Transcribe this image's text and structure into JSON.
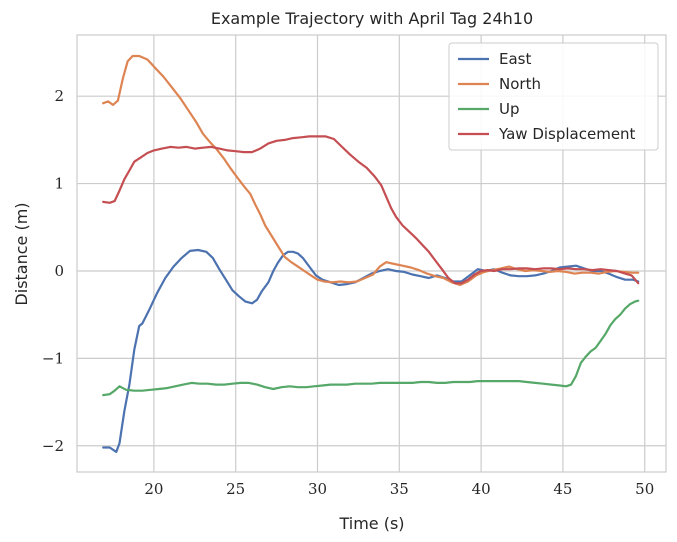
{
  "chart_data": {
    "type": "line",
    "title": "Example Trajectory with April Tag 24h10",
    "xlabel": "Time (s)",
    "ylabel": "Distance (m)",
    "xlim": [
      15.3,
      51.3
    ],
    "ylim": [
      -2.3,
      2.7
    ],
    "xticks": [
      20,
      25,
      30,
      35,
      40,
      45,
      50
    ],
    "yticks": [
      -2,
      -1,
      0,
      1,
      2
    ],
    "ytick_labels": [
      "−2",
      "−1",
      "0",
      "1",
      "2"
    ],
    "grid": true,
    "legend_position": "top-right",
    "series": [
      {
        "name": "East",
        "color": "#4c72b0",
        "points": [
          [
            16.9,
            -2.02
          ],
          [
            17.3,
            -2.02
          ],
          [
            17.7,
            -2.07
          ],
          [
            17.9,
            -1.97
          ],
          [
            18.2,
            -1.6
          ],
          [
            18.5,
            -1.3
          ],
          [
            18.8,
            -0.9
          ],
          [
            19.1,
            -0.63
          ],
          [
            19.3,
            -0.6
          ],
          [
            19.7,
            -0.45
          ],
          [
            20.2,
            -0.25
          ],
          [
            20.7,
            -0.08
          ],
          [
            21.2,
            0.05
          ],
          [
            21.7,
            0.15
          ],
          [
            22.2,
            0.23
          ],
          [
            22.7,
            0.24
          ],
          [
            23.2,
            0.22
          ],
          [
            23.6,
            0.15
          ],
          [
            24.0,
            0.02
          ],
          [
            24.4,
            -0.1
          ],
          [
            24.8,
            -0.22
          ],
          [
            25.2,
            -0.29
          ],
          [
            25.6,
            -0.35
          ],
          [
            26.0,
            -0.37
          ],
          [
            26.3,
            -0.33
          ],
          [
            26.6,
            -0.23
          ],
          [
            27.0,
            -0.13
          ],
          [
            27.3,
            0.0
          ],
          [
            27.6,
            0.1
          ],
          [
            27.9,
            0.18
          ],
          [
            28.2,
            0.22
          ],
          [
            28.5,
            0.22
          ],
          [
            28.8,
            0.2
          ],
          [
            29.1,
            0.15
          ],
          [
            29.5,
            0.05
          ],
          [
            29.9,
            -0.05
          ],
          [
            30.3,
            -0.1
          ],
          [
            30.8,
            -0.13
          ],
          [
            31.3,
            -0.16
          ],
          [
            31.8,
            -0.15
          ],
          [
            32.3,
            -0.13
          ],
          [
            32.8,
            -0.08
          ],
          [
            33.3,
            -0.03
          ],
          [
            33.8,
            0.0
          ],
          [
            34.3,
            0.02
          ],
          [
            34.8,
            0.0
          ],
          [
            35.3,
            -0.01
          ],
          [
            35.8,
            -0.04
          ],
          [
            36.3,
            -0.06
          ],
          [
            36.8,
            -0.08
          ],
          [
            37.3,
            -0.05
          ],
          [
            37.8,
            -0.08
          ],
          [
            38.3,
            -0.12
          ],
          [
            38.8,
            -0.12
          ],
          [
            39.3,
            -0.05
          ],
          [
            39.8,
            0.02
          ],
          [
            40.3,
            0.0
          ],
          [
            40.8,
            0.02
          ],
          [
            41.3,
            -0.02
          ],
          [
            41.8,
            -0.05
          ],
          [
            42.3,
            -0.06
          ],
          [
            42.8,
            -0.06
          ],
          [
            43.3,
            -0.05
          ],
          [
            43.8,
            -0.03
          ],
          [
            44.3,
            0.0
          ],
          [
            44.8,
            0.04
          ],
          [
            45.3,
            0.05
          ],
          [
            45.8,
            0.06
          ],
          [
            46.3,
            0.03
          ],
          [
            46.8,
            0.0
          ],
          [
            47.3,
            0.0
          ],
          [
            47.8,
            -0.03
          ],
          [
            48.3,
            -0.07
          ],
          [
            48.8,
            -0.1
          ],
          [
            49.3,
            -0.1
          ],
          [
            49.6,
            -0.12
          ]
        ]
      },
      {
        "name": "North",
        "color": "#dd8452",
        "points": [
          [
            16.9,
            1.92
          ],
          [
            17.2,
            1.94
          ],
          [
            17.5,
            1.9
          ],
          [
            17.8,
            1.95
          ],
          [
            18.1,
            2.2
          ],
          [
            18.4,
            2.4
          ],
          [
            18.7,
            2.46
          ],
          [
            19.1,
            2.46
          ],
          [
            19.6,
            2.42
          ],
          [
            20.1,
            2.32
          ],
          [
            20.6,
            2.22
          ],
          [
            21.1,
            2.1
          ],
          [
            21.6,
            1.98
          ],
          [
            22.1,
            1.84
          ],
          [
            22.6,
            1.7
          ],
          [
            23.0,
            1.57
          ],
          [
            23.4,
            1.48
          ],
          [
            23.8,
            1.4
          ],
          [
            24.3,
            1.28
          ],
          [
            24.7,
            1.17
          ],
          [
            25.1,
            1.07
          ],
          [
            25.5,
            0.97
          ],
          [
            25.9,
            0.88
          ],
          [
            26.2,
            0.76
          ],
          [
            26.5,
            0.65
          ],
          [
            26.8,
            0.52
          ],
          [
            27.2,
            0.4
          ],
          [
            27.6,
            0.28
          ],
          [
            28.0,
            0.16
          ],
          [
            28.4,
            0.1
          ],
          [
            28.8,
            0.05
          ],
          [
            29.2,
            0.0
          ],
          [
            29.6,
            -0.05
          ],
          [
            30.0,
            -0.1
          ],
          [
            30.4,
            -0.12
          ],
          [
            30.9,
            -0.13
          ],
          [
            31.4,
            -0.12
          ],
          [
            31.9,
            -0.13
          ],
          [
            32.4,
            -0.12
          ],
          [
            32.9,
            -0.08
          ],
          [
            33.4,
            -0.04
          ],
          [
            33.8,
            0.05
          ],
          [
            34.2,
            0.1
          ],
          [
            34.7,
            0.08
          ],
          [
            35.2,
            0.06
          ],
          [
            35.7,
            0.04
          ],
          [
            36.2,
            0.01
          ],
          [
            36.7,
            -0.03
          ],
          [
            37.2,
            -0.06
          ],
          [
            37.7,
            -0.08
          ],
          [
            38.2,
            -0.13
          ],
          [
            38.7,
            -0.16
          ],
          [
            39.2,
            -0.12
          ],
          [
            39.7,
            -0.05
          ],
          [
            40.2,
            -0.01
          ],
          [
            40.7,
            0.01
          ],
          [
            41.2,
            0.03
          ],
          [
            41.7,
            0.05
          ],
          [
            42.2,
            0.02
          ],
          [
            42.7,
            0.0
          ],
          [
            43.2,
            0.01
          ],
          [
            43.7,
            0.0
          ],
          [
            44.2,
            -0.01
          ],
          [
            44.7,
            0.0
          ],
          [
            45.2,
            -0.01
          ],
          [
            45.7,
            -0.03
          ],
          [
            46.2,
            -0.02
          ],
          [
            46.7,
            -0.02
          ],
          [
            47.2,
            -0.03
          ],
          [
            47.7,
            -0.01
          ],
          [
            48.2,
            0.0
          ],
          [
            48.7,
            -0.01
          ],
          [
            49.2,
            -0.02
          ],
          [
            49.6,
            -0.02
          ]
        ]
      },
      {
        "name": "Up",
        "color": "#55a868",
        "points": [
          [
            16.9,
            -1.42
          ],
          [
            17.3,
            -1.41
          ],
          [
            17.6,
            -1.37
          ],
          [
            17.9,
            -1.32
          ],
          [
            18.3,
            -1.36
          ],
          [
            18.8,
            -1.37
          ],
          [
            19.3,
            -1.37
          ],
          [
            19.8,
            -1.36
          ],
          [
            20.3,
            -1.35
          ],
          [
            20.8,
            -1.34
          ],
          [
            21.3,
            -1.32
          ],
          [
            21.8,
            -1.3
          ],
          [
            22.3,
            -1.28
          ],
          [
            22.8,
            -1.29
          ],
          [
            23.3,
            -1.29
          ],
          [
            23.8,
            -1.3
          ],
          [
            24.3,
            -1.3
          ],
          [
            24.8,
            -1.29
          ],
          [
            25.3,
            -1.28
          ],
          [
            25.8,
            -1.28
          ],
          [
            26.3,
            -1.3
          ],
          [
            26.8,
            -1.33
          ],
          [
            27.3,
            -1.35
          ],
          [
            27.8,
            -1.33
          ],
          [
            28.3,
            -1.32
          ],
          [
            28.8,
            -1.33
          ],
          [
            29.3,
            -1.33
          ],
          [
            29.8,
            -1.32
          ],
          [
            30.3,
            -1.31
          ],
          [
            30.8,
            -1.3
          ],
          [
            31.3,
            -1.3
          ],
          [
            31.8,
            -1.3
          ],
          [
            32.3,
            -1.29
          ],
          [
            32.8,
            -1.29
          ],
          [
            33.3,
            -1.29
          ],
          [
            33.8,
            -1.28
          ],
          [
            34.3,
            -1.28
          ],
          [
            34.8,
            -1.28
          ],
          [
            35.3,
            -1.28
          ],
          [
            35.8,
            -1.28
          ],
          [
            36.3,
            -1.27
          ],
          [
            36.8,
            -1.27
          ],
          [
            37.3,
            -1.28
          ],
          [
            37.8,
            -1.28
          ],
          [
            38.3,
            -1.27
          ],
          [
            38.8,
            -1.27
          ],
          [
            39.3,
            -1.27
          ],
          [
            39.8,
            -1.26
          ],
          [
            40.3,
            -1.26
          ],
          [
            40.8,
            -1.26
          ],
          [
            41.3,
            -1.26
          ],
          [
            41.8,
            -1.26
          ],
          [
            42.3,
            -1.26
          ],
          [
            42.8,
            -1.27
          ],
          [
            43.3,
            -1.28
          ],
          [
            43.8,
            -1.29
          ],
          [
            44.3,
            -1.3
          ],
          [
            44.8,
            -1.31
          ],
          [
            45.2,
            -1.32
          ],
          [
            45.5,
            -1.3
          ],
          [
            45.8,
            -1.2
          ],
          [
            46.1,
            -1.05
          ],
          [
            46.4,
            -0.98
          ],
          [
            46.7,
            -0.92
          ],
          [
            47.0,
            -0.88
          ],
          [
            47.3,
            -0.8
          ],
          [
            47.6,
            -0.72
          ],
          [
            47.9,
            -0.62
          ],
          [
            48.2,
            -0.55
          ],
          [
            48.5,
            -0.5
          ],
          [
            48.8,
            -0.43
          ],
          [
            49.1,
            -0.38
          ],
          [
            49.4,
            -0.35
          ],
          [
            49.6,
            -0.34
          ]
        ]
      },
      {
        "name": "Yaw Displacement",
        "color": "#c44e52",
        "points": [
          [
            16.9,
            0.79
          ],
          [
            17.3,
            0.78
          ],
          [
            17.6,
            0.8
          ],
          [
            17.9,
            0.92
          ],
          [
            18.2,
            1.05
          ],
          [
            18.5,
            1.15
          ],
          [
            18.8,
            1.25
          ],
          [
            19.2,
            1.3
          ],
          [
            19.6,
            1.35
          ],
          [
            20.0,
            1.38
          ],
          [
            20.5,
            1.4
          ],
          [
            21.0,
            1.42
          ],
          [
            21.5,
            1.41
          ],
          [
            22.0,
            1.42
          ],
          [
            22.5,
            1.4
          ],
          [
            23.0,
            1.41
          ],
          [
            23.5,
            1.42
          ],
          [
            24.0,
            1.4
          ],
          [
            24.5,
            1.38
          ],
          [
            25.0,
            1.37
          ],
          [
            25.5,
            1.36
          ],
          [
            26.0,
            1.36
          ],
          [
            26.5,
            1.4
          ],
          [
            27.0,
            1.46
          ],
          [
            27.5,
            1.49
          ],
          [
            28.0,
            1.5
          ],
          [
            28.5,
            1.52
          ],
          [
            29.0,
            1.53
          ],
          [
            29.5,
            1.54
          ],
          [
            30.0,
            1.54
          ],
          [
            30.5,
            1.54
          ],
          [
            31.0,
            1.51
          ],
          [
            31.5,
            1.42
          ],
          [
            32.0,
            1.33
          ],
          [
            32.5,
            1.25
          ],
          [
            33.0,
            1.18
          ],
          [
            33.5,
            1.08
          ],
          [
            33.9,
            0.98
          ],
          [
            34.2,
            0.85
          ],
          [
            34.5,
            0.72
          ],
          [
            34.8,
            0.62
          ],
          [
            35.2,
            0.52
          ],
          [
            35.6,
            0.45
          ],
          [
            36.0,
            0.38
          ],
          [
            36.4,
            0.3
          ],
          [
            36.8,
            0.22
          ],
          [
            37.2,
            0.12
          ],
          [
            37.6,
            0.02
          ],
          [
            38.0,
            -0.08
          ],
          [
            38.4,
            -0.14
          ],
          [
            38.8,
            -0.14
          ],
          [
            39.2,
            -0.1
          ],
          [
            39.6,
            -0.04
          ],
          [
            40.0,
            0.0
          ],
          [
            40.4,
            0.01
          ],
          [
            40.8,
            0.0
          ],
          [
            41.3,
            0.02
          ],
          [
            41.8,
            0.02
          ],
          [
            42.3,
            0.03
          ],
          [
            42.8,
            0.03
          ],
          [
            43.3,
            0.02
          ],
          [
            43.8,
            0.03
          ],
          [
            44.3,
            0.03
          ],
          [
            44.8,
            0.02
          ],
          [
            45.3,
            0.03
          ],
          [
            45.8,
            0.02
          ],
          [
            46.3,
            0.02
          ],
          [
            46.8,
            0.01
          ],
          [
            47.3,
            0.02
          ],
          [
            47.8,
            0.01
          ],
          [
            48.3,
            0.0
          ],
          [
            48.8,
            -0.03
          ],
          [
            49.2,
            -0.05
          ],
          [
            49.6,
            -0.14
          ]
        ]
      }
    ]
  }
}
